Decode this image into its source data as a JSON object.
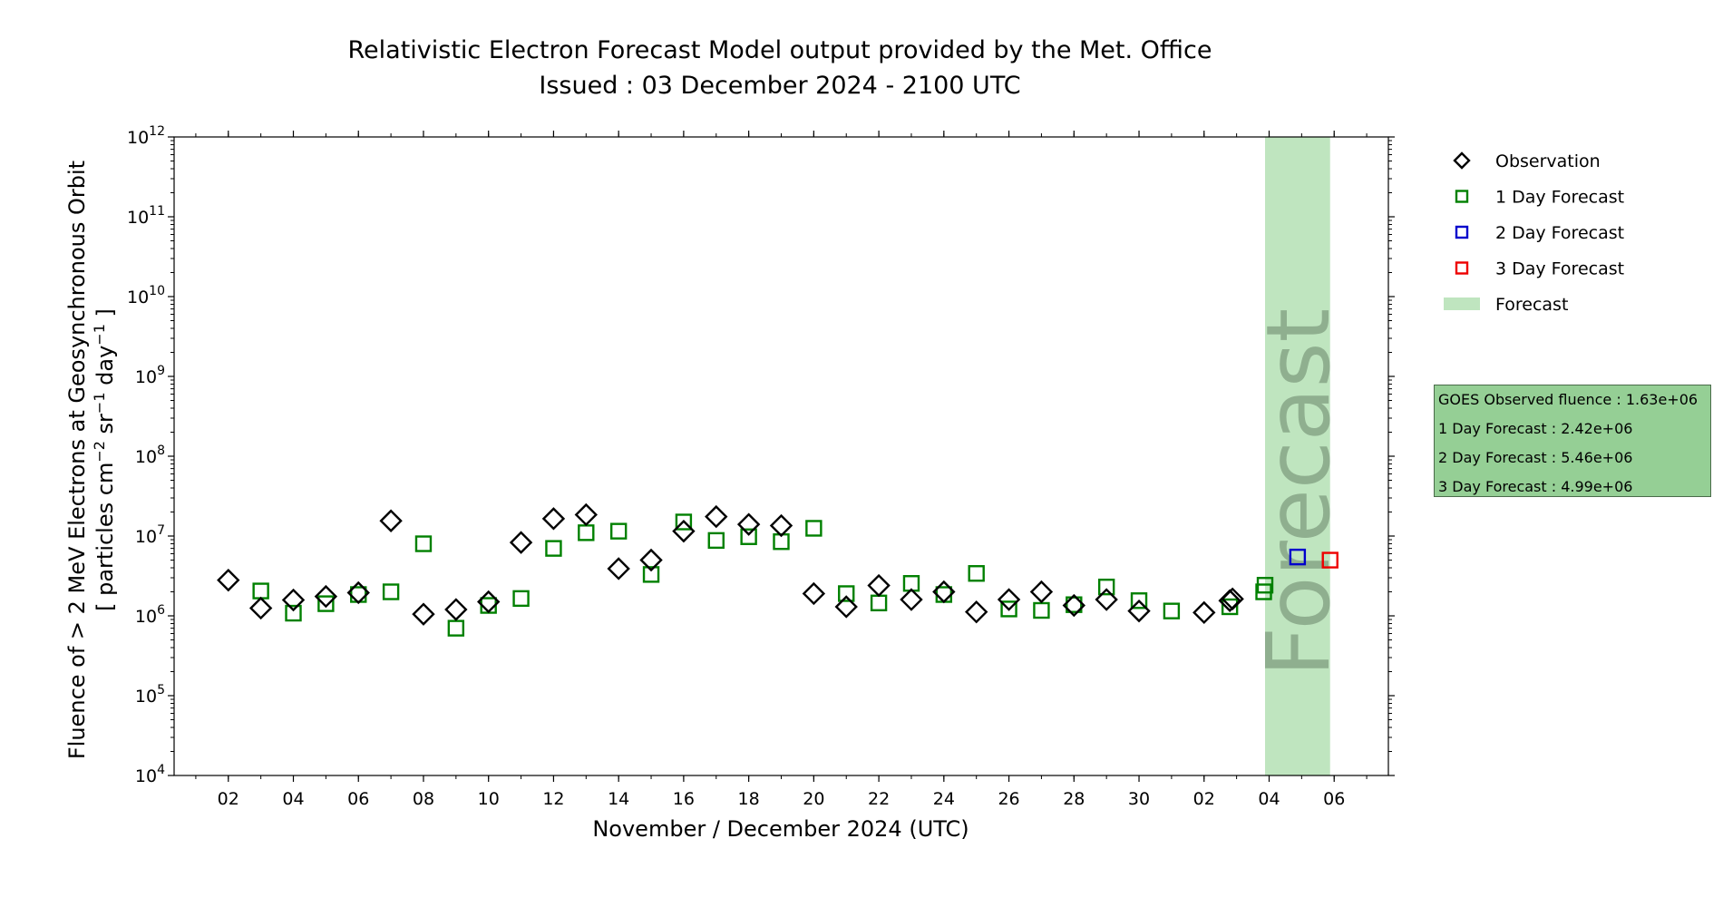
{
  "chart_data": {
    "type": "scatter",
    "title": [
      "Relativistic Electron Forecast Model output provided by the Met. Office",
      "Issued : 03 December 2024 - 2100 UTC"
    ],
    "xlabel": "November / December 2024 (UTC)",
    "ylabel": [
      "Fluence of > 2 MeV Electrons at Geosynchronous Orbit",
      "[ particles cm",
      "−2",
      " sr",
      "−1",
      " day",
      "−1",
      " ]"
    ],
    "yscale": "log",
    "ylim": [
      10000,
      1000000000000
    ],
    "xlim": [
      "2024-10-31T08:00",
      "2024-12-07T16:00"
    ],
    "x_ticks": [
      {
        "date": "2024-11-02",
        "label": "02"
      },
      {
        "date": "2024-11-04",
        "label": "04"
      },
      {
        "date": "2024-11-06",
        "label": "06"
      },
      {
        "date": "2024-11-08",
        "label": "08"
      },
      {
        "date": "2024-11-10",
        "label": "10"
      },
      {
        "date": "2024-11-12",
        "label": "12"
      },
      {
        "date": "2024-11-14",
        "label": "14"
      },
      {
        "date": "2024-11-16",
        "label": "16"
      },
      {
        "date": "2024-11-18",
        "label": "18"
      },
      {
        "date": "2024-11-20",
        "label": "20"
      },
      {
        "date": "2024-11-22",
        "label": "22"
      },
      {
        "date": "2024-11-24",
        "label": "24"
      },
      {
        "date": "2024-11-26",
        "label": "26"
      },
      {
        "date": "2024-11-28",
        "label": "28"
      },
      {
        "date": "2024-11-30",
        "label": "30"
      },
      {
        "date": "2024-12-02",
        "label": "02"
      },
      {
        "date": "2024-12-04",
        "label": "04"
      },
      {
        "date": "2024-12-06",
        "label": "06"
      }
    ],
    "y_ticks": [
      {
        "value": 10000,
        "base": "10",
        "exp": "4"
      },
      {
        "value": 100000,
        "base": "10",
        "exp": "5"
      },
      {
        "value": 1000000,
        "base": "10",
        "exp": "6"
      },
      {
        "value": 10000000,
        "base": "10",
        "exp": "7"
      },
      {
        "value": 100000000,
        "base": "10",
        "exp": "8"
      },
      {
        "value": 1000000000,
        "base": "10",
        "exp": "9"
      },
      {
        "value": 10000000000,
        "base": "10",
        "exp": "10"
      },
      {
        "value": 100000000000,
        "base": "10",
        "exp": "11"
      },
      {
        "value": 1000000000000,
        "base": "10",
        "exp": "12"
      }
    ],
    "forecast_region": {
      "start": "2024-12-03T21:00",
      "end": "2024-12-05T21:00",
      "color": "#bfe5bf",
      "label": "Forecast"
    },
    "series": [
      {
        "name": "Observation",
        "marker": "diamond",
        "color": "#000000",
        "points": [
          {
            "x": "2024-11-02",
            "y": 2800000
          },
          {
            "x": "2024-11-03",
            "y": 1250000
          },
          {
            "x": "2024-11-04",
            "y": 1580000
          },
          {
            "x": "2024-11-05",
            "y": 1750000
          },
          {
            "x": "2024-11-06",
            "y": 1950000
          },
          {
            "x": "2024-11-07",
            "y": 15500000
          },
          {
            "x": "2024-11-08",
            "y": 1050000
          },
          {
            "x": "2024-11-09",
            "y": 1200000
          },
          {
            "x": "2024-11-10",
            "y": 1500000
          },
          {
            "x": "2024-11-11",
            "y": 8300000
          },
          {
            "x": "2024-11-12",
            "y": 16500000
          },
          {
            "x": "2024-11-13",
            "y": 18500000
          },
          {
            "x": "2024-11-14",
            "y": 3900000
          },
          {
            "x": "2024-11-15",
            "y": 5000000
          },
          {
            "x": "2024-11-16",
            "y": 11500000
          },
          {
            "x": "2024-11-17",
            "y": 17500000
          },
          {
            "x": "2024-11-18",
            "y": 14000000
          },
          {
            "x": "2024-11-19",
            "y": 13500000
          },
          {
            "x": "2024-11-20",
            "y": 1900000
          },
          {
            "x": "2024-11-21",
            "y": 1300000
          },
          {
            "x": "2024-11-22",
            "y": 2400000
          },
          {
            "x": "2024-11-23",
            "y": 1600000
          },
          {
            "x": "2024-11-24",
            "y": 2000000
          },
          {
            "x": "2024-11-25",
            "y": 1120000
          },
          {
            "x": "2024-11-26",
            "y": 1600000
          },
          {
            "x": "2024-11-27",
            "y": 2000000
          },
          {
            "x": "2024-11-28",
            "y": 1350000
          },
          {
            "x": "2024-11-29",
            "y": 1600000
          },
          {
            "x": "2024-11-30",
            "y": 1150000
          },
          {
            "x": "2024-12-02",
            "y": 1100000
          },
          {
            "x": "2024-12-02T19:00",
            "y": 1550000
          },
          {
            "x": "2024-12-02T21:00",
            "y": 1630000
          }
        ]
      },
      {
        "name": "1 Day Forecast",
        "marker": "square",
        "color": "#008000",
        "points": [
          {
            "x": "2024-11-03",
            "y": 2050000
          },
          {
            "x": "2024-11-04",
            "y": 1080000
          },
          {
            "x": "2024-11-05",
            "y": 1420000
          },
          {
            "x": "2024-11-06",
            "y": 1850000
          },
          {
            "x": "2024-11-07",
            "y": 2000000
          },
          {
            "x": "2024-11-08",
            "y": 8000000
          },
          {
            "x": "2024-11-09",
            "y": 700000
          },
          {
            "x": "2024-11-10",
            "y": 1350000
          },
          {
            "x": "2024-11-11",
            "y": 1650000
          },
          {
            "x": "2024-11-12",
            "y": 7000000
          },
          {
            "x": "2024-11-13",
            "y": 11000000
          },
          {
            "x": "2024-11-14",
            "y": 11500000
          },
          {
            "x": "2024-11-15",
            "y": 3300000
          },
          {
            "x": "2024-11-16",
            "y": 15000000
          },
          {
            "x": "2024-11-17",
            "y": 8800000
          },
          {
            "x": "2024-11-18",
            "y": 9800000
          },
          {
            "x": "2024-11-19",
            "y": 8500000
          },
          {
            "x": "2024-11-20",
            "y": 12500000
          },
          {
            "x": "2024-11-21",
            "y": 1900000
          },
          {
            "x": "2024-11-22",
            "y": 1450000
          },
          {
            "x": "2024-11-23",
            "y": 2550000
          },
          {
            "x": "2024-11-24",
            "y": 1850000
          },
          {
            "x": "2024-11-25",
            "y": 3400000
          },
          {
            "x": "2024-11-26",
            "y": 1220000
          },
          {
            "x": "2024-11-27",
            "y": 1170000
          },
          {
            "x": "2024-11-28",
            "y": 1380000
          },
          {
            "x": "2024-11-29",
            "y": 2300000
          },
          {
            "x": "2024-11-30",
            "y": 1550000
          },
          {
            "x": "2024-12-01",
            "y": 1150000
          },
          {
            "x": "2024-12-02T19:00",
            "y": 1300000
          },
          {
            "x": "2024-12-03T20:00",
            "y": 2000000
          },
          {
            "x": "2024-12-03T21:00",
            "y": 2420000
          }
        ]
      },
      {
        "name": "2 Day Forecast",
        "marker": "square",
        "color": "#0000cc",
        "points": [
          {
            "x": "2024-12-04T21:00",
            "y": 5460000
          }
        ]
      },
      {
        "name": "3 Day Forecast",
        "marker": "square",
        "color": "#ee0000",
        "points": [
          {
            "x": "2024-12-05T21:00",
            "y": 4990000
          }
        ]
      }
    ],
    "legend": {
      "placement": "right",
      "entries": [
        {
          "label": "Observation",
          "marker": "diamond",
          "color": "#000000"
        },
        {
          "label": "1 Day Forecast",
          "marker": "square",
          "color": "#008000"
        },
        {
          "label": "2 Day Forecast",
          "marker": "square",
          "color": "#0000cc"
        },
        {
          "label": "3 Day Forecast",
          "marker": "square",
          "color": "#ee0000"
        },
        {
          "label": "Forecast",
          "marker": "patch",
          "color": "#bfe5bf"
        }
      ]
    }
  },
  "summary_box": {
    "lines": [
      "GOES Observed fluence : 1.63e+06",
      "1 Day Forecast : 2.42e+06",
      "2 Day Forecast : 5.46e+06",
      "3 Day Forecast : 4.99e+06"
    ],
    "background": "#95cf95"
  }
}
